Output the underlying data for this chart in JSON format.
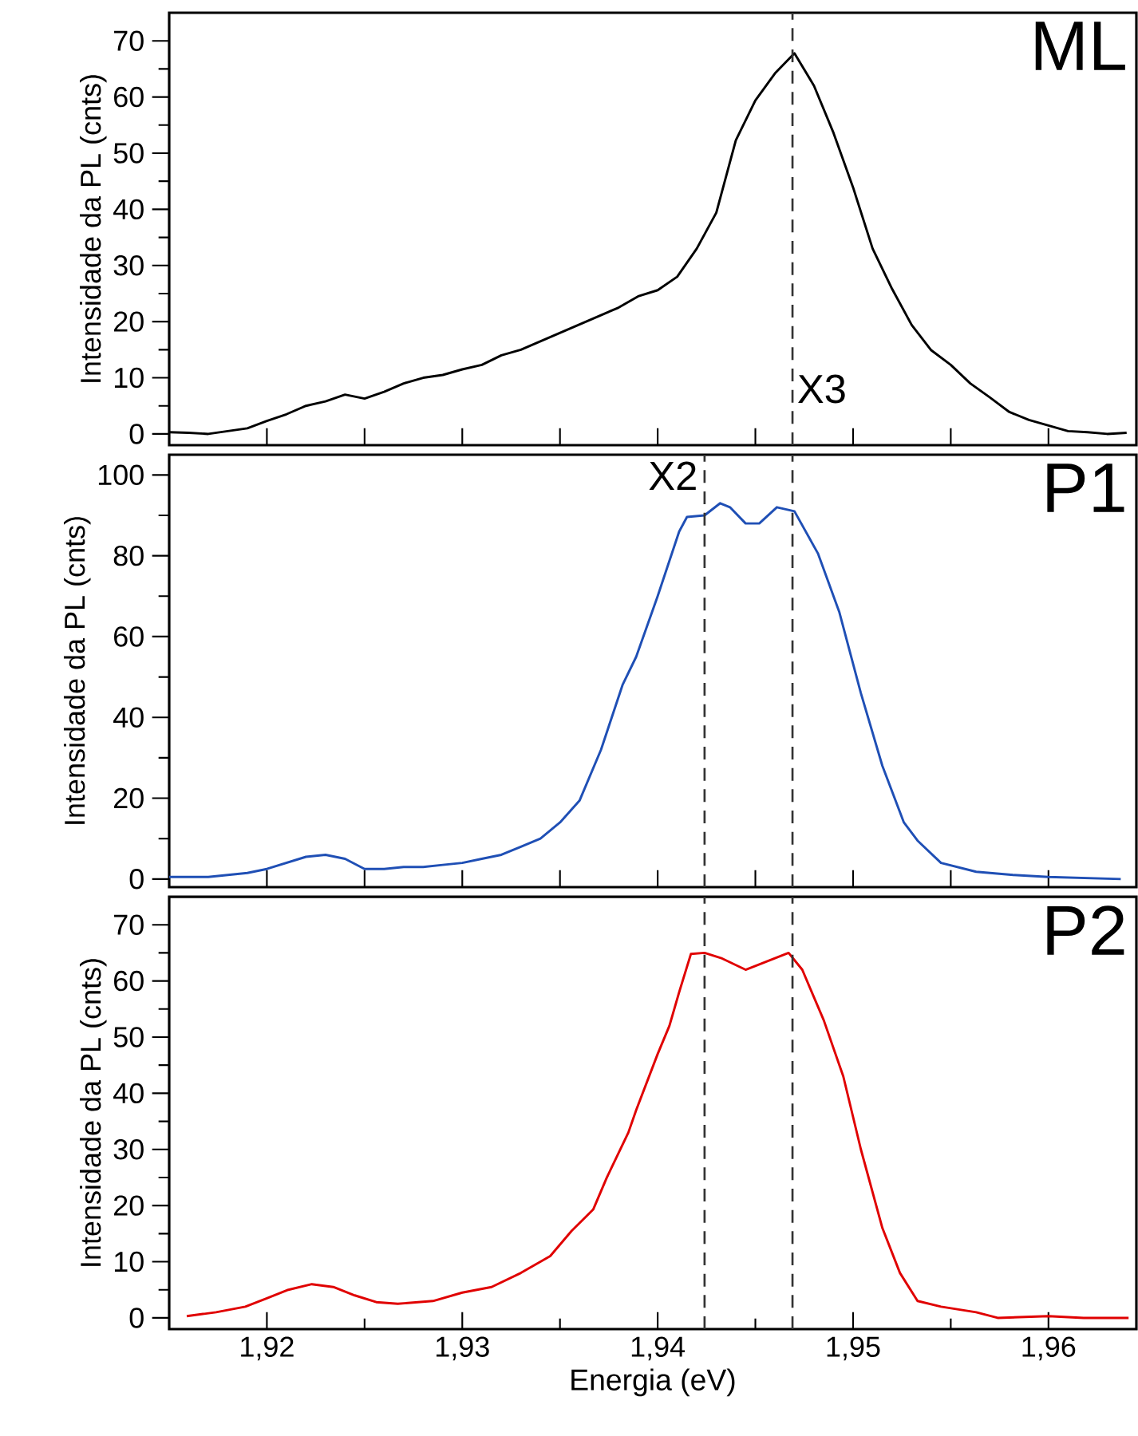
{
  "chart_data": [
    {
      "type": "line",
      "title": "ML",
      "ylabel": "Intensidade da PL (cnts)",
      "tick_labels": "y",
      "xlim": [
        1.915,
        1.9645
      ],
      "ylim": [
        -2,
        75
      ],
      "xticks": [
        {
          "value": 1.92,
          "label": null
        },
        {
          "value": 1.925,
          "label": null
        },
        {
          "value": 1.93,
          "label": null
        },
        {
          "value": 1.935,
          "label": null
        },
        {
          "value": 1.94,
          "label": null
        },
        {
          "value": 1.945,
          "label": null
        },
        {
          "value": 1.95,
          "label": null
        },
        {
          "value": 1.955,
          "label": null
        },
        {
          "value": 1.96,
          "label": null
        }
      ],
      "yticks": [
        0,
        {
          "value": 5,
          "label": null
        },
        10,
        {
          "value": 15,
          "label": null
        },
        20,
        {
          "value": 25,
          "label": null
        },
        30,
        {
          "value": 35,
          "label": null
        },
        40,
        {
          "value": 45,
          "label": null
        },
        50,
        {
          "value": 55,
          "label": null
        },
        60,
        {
          "value": 65,
          "label": null
        },
        70
      ],
      "ref_lines": [
        {
          "axis": "x",
          "value": 1.9469,
          "label": "X3",
          "color": "#333333",
          "line_style": "dashed"
        }
      ],
      "series": [
        {
          "color": "#000000",
          "x": [
            1.915,
            1.916,
            1.917,
            1.918,
            1.919,
            1.92,
            1.921,
            1.922,
            1.923,
            1.924,
            1.925,
            1.926,
            1.927,
            1.928,
            1.929,
            1.93,
            1.931,
            1.932,
            1.933,
            1.934,
            1.935,
            1.936,
            1.937,
            1.938,
            1.939,
            1.94,
            1.941,
            1.942,
            1.943,
            1.944,
            1.945,
            1.946,
            1.947,
            1.948,
            1.949,
            1.95,
            1.951,
            1.952,
            1.953,
            1.954,
            1.955,
            1.956,
            1.957,
            1.958,
            1.959,
            1.96,
            1.961,
            1.962,
            1.963,
            1.964
          ],
          "values": [
            0.3,
            0.2,
            0,
            0.5,
            1,
            2.3,
            3.5,
            5,
            5.8,
            7,
            6.3,
            7.5,
            9,
            10,
            10.5,
            11.5,
            12.3,
            14,
            15,
            16.5,
            18,
            19.5,
            21,
            22.5,
            24.5,
            25.6,
            28,
            33,
            39.4,
            52.3,
            59.4,
            64.2,
            67.8,
            62,
            53.6,
            43.9,
            33,
            25.8,
            19.4,
            14.9,
            12.3,
            9,
            6.5,
            3.9,
            2.5,
            1.5,
            0.5,
            0.3,
            0,
            0.2
          ]
        }
      ]
    },
    {
      "type": "line",
      "title": "P1",
      "ylabel": "Intensidade da PL (cnts)",
      "tick_labels": "y",
      "xlim": [
        1.915,
        1.9645
      ],
      "ylim": [
        -2,
        105
      ],
      "xticks": [
        {
          "value": 1.92,
          "label": null
        },
        {
          "value": 1.925,
          "label": null
        },
        {
          "value": 1.93,
          "label": null
        },
        {
          "value": 1.935,
          "label": null
        },
        {
          "value": 1.94,
          "label": null
        },
        {
          "value": 1.945,
          "label": null
        },
        {
          "value": 1.95,
          "label": null
        },
        {
          "value": 1.955,
          "label": null
        },
        {
          "value": 1.96,
          "label": null
        }
      ],
      "yticks": [
        0,
        {
          "value": 10,
          "label": null
        },
        20,
        {
          "value": 30,
          "label": null
        },
        40,
        {
          "value": 50,
          "label": null
        },
        60,
        {
          "value": 70,
          "label": null
        },
        80,
        {
          "value": 90,
          "label": null
        },
        100
      ],
      "ref_lines": [
        {
          "axis": "x",
          "value": 1.9424,
          "label": "X2",
          "color": "#333333",
          "line_style": "dashed"
        },
        {
          "axis": "x",
          "value": 1.9469,
          "color": "#333333",
          "line_style": "dashed"
        }
      ],
      "series": [
        {
          "color": "#1f4fb5",
          "x": [
            1.915,
            1.917,
            1.919,
            1.92,
            1.921,
            1.922,
            1.923,
            1.924,
            1.925,
            1.926,
            1.927,
            1.928,
            1.929,
            1.93,
            1.931,
            1.932,
            1.933,
            1.934,
            1.935,
            1.936,
            1.9371,
            1.9382,
            1.9389,
            1.94,
            1.9411,
            1.9415,
            1.9424,
            1.9432,
            1.9437,
            1.9445,
            1.9452,
            1.9461,
            1.947,
            1.9482,
            1.9493,
            1.9504,
            1.9515,
            1.9526,
            1.9533,
            1.9545,
            1.9563,
            1.9582,
            1.96,
            1.9637
          ],
          "values": [
            0.5,
            0.5,
            1.5,
            2.5,
            4,
            5.5,
            6,
            5,
            2.5,
            2.5,
            3,
            3,
            3.5,
            4,
            5,
            6,
            8,
            10,
            14,
            19.4,
            32,
            48,
            55,
            70,
            86,
            89.6,
            90,
            93,
            92,
            88,
            88,
            92,
            91,
            80.6,
            66,
            46,
            28,
            14,
            9.5,
            4,
            1.8,
            1,
            0.5,
            0
          ]
        }
      ]
    },
    {
      "type": "line",
      "title": "P2",
      "ylabel": "Intensidade da PL (cnts)",
      "xlabel": "Energia (eV)",
      "xlim": [
        1.915,
        1.9645
      ],
      "ylim": [
        -2,
        75
      ],
      "xticks": [
        {
          "value": 1.92,
          "label": "1,92"
        },
        {
          "value": 1.925,
          "label": null
        },
        {
          "value": 1.93,
          "label": "1,93"
        },
        {
          "value": 1.935,
          "label": null
        },
        {
          "value": 1.94,
          "label": "1,94"
        },
        {
          "value": 1.945,
          "label": null
        },
        {
          "value": 1.95,
          "label": "1,95"
        },
        {
          "value": 1.955,
          "label": null
        },
        {
          "value": 1.96,
          "label": "1,96"
        }
      ],
      "yticks": [
        0,
        {
          "value": 5,
          "label": null
        },
        10,
        {
          "value": 15,
          "label": null
        },
        20,
        {
          "value": 25,
          "label": null
        },
        30,
        {
          "value": 35,
          "label": null
        },
        40,
        {
          "value": 45,
          "label": null
        },
        50,
        {
          "value": 55,
          "label": null
        },
        60,
        {
          "value": 65,
          "label": null
        },
        70
      ],
      "ref_lines": [
        {
          "axis": "x",
          "value": 1.9424,
          "color": "#333333",
          "line_style": "dashed"
        },
        {
          "axis": "x",
          "value": 1.9469,
          "color": "#333333",
          "line_style": "dashed"
        }
      ],
      "series": [
        {
          "color": "#e00000",
          "x": [
            1.9159,
            1.9174,
            1.9189,
            1.92,
            1.9211,
            1.9223,
            1.9234,
            1.9245,
            1.9256,
            1.9267,
            1.9285,
            1.93,
            1.9315,
            1.933,
            1.9345,
            1.9356,
            1.9367,
            1.9374,
            1.9385,
            1.9389,
            1.94,
            1.9406,
            1.9411,
            1.9417,
            1.9424,
            1.9433,
            1.9445,
            1.9456,
            1.9467,
            1.9474,
            1.9485,
            1.9495,
            1.9504,
            1.9515,
            1.9524,
            1.9533,
            1.9545,
            1.9563,
            1.9574,
            1.96,
            1.9618,
            1.9641
          ],
          "values": [
            0.3,
            1,
            2,
            3.5,
            5,
            6,
            5.5,
            4,
            2.8,
            2.5,
            3,
            4.5,
            5.5,
            8,
            11,
            15.5,
            19.3,
            25,
            33,
            37,
            47,
            52,
            58,
            64.8,
            65,
            64,
            62,
            63.5,
            65,
            62,
            53,
            43,
            30,
            16,
            8,
            3,
            2,
            1,
            0,
            0.3,
            0,
            0
          ]
        }
      ]
    }
  ]
}
